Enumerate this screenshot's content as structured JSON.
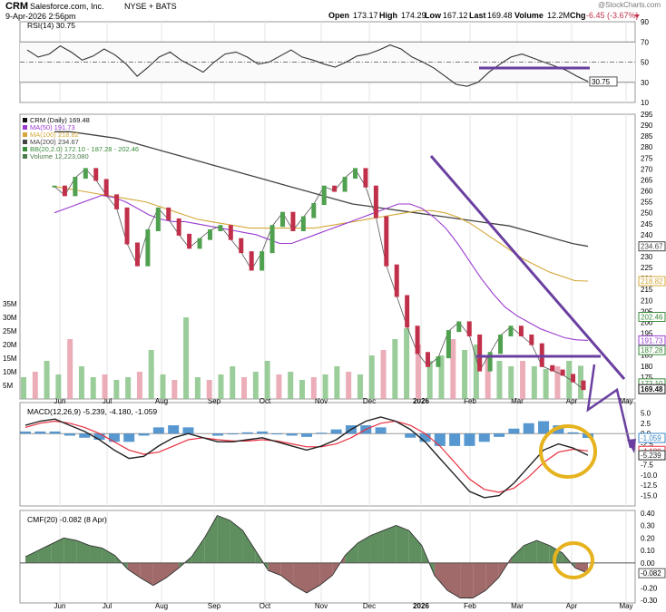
{
  "header": {
    "symbol": "CRM",
    "company": "Salesforce.com, Inc.",
    "exchange": "NYSE + BATS",
    "date": "9-Apr-2026 2:56pm",
    "open_label": "Open",
    "open": "173.17",
    "high_label": "High",
    "high": "174.29",
    "low_label": "Low",
    "low": "167.12",
    "last_label": "Last",
    "last": "169.48",
    "volume_label": "Volume",
    "volume": "12.2M",
    "chg_label": "Chg",
    "chg": "-6.45 (-3.67%)",
    "chg_icon": "down-triangle-icon",
    "watermark": "@StockCharts.com"
  },
  "colors": {
    "up": "#4fa04f",
    "down": "#c0304a",
    "ma50": "#9b3ccf",
    "ma100": "#d4a838",
    "ma200": "#444444",
    "bb": "#3a8a3a",
    "volume_up": "#88c488",
    "volume_down": "#e8a0ad",
    "macd_line": "#222222",
    "signal_line": "#e83040",
    "histogram": "#3a86c8",
    "cmf_pos": "#5f8f5f",
    "cmf_neg": "#a06a6a",
    "annotation": "#6a3fa0",
    "circle": "#e6b31e"
  },
  "chart_data": [
    {
      "type": "line",
      "title": "RSI(14) 30.75",
      "ylim": [
        10,
        90
      ],
      "yticks": [
        10,
        30,
        50,
        70,
        90
      ],
      "current_label": "30.75",
      "series": [
        {
          "name": "RSI(14)",
          "values": [
            62,
            55,
            58,
            66,
            60,
            52,
            56,
            63,
            57,
            48,
            36,
            45,
            55,
            60,
            52,
            46,
            40,
            50,
            58,
            60,
            55,
            48,
            50,
            56,
            62,
            55,
            52,
            48,
            45,
            50,
            56,
            58,
            62,
            67,
            63,
            55,
            50,
            44,
            36,
            28,
            26,
            30,
            40,
            48,
            55,
            58,
            54,
            50,
            46,
            42,
            36,
            30.75
          ]
        }
      ]
    },
    {
      "type": "line",
      "title": "CRM (Daily) 169.48",
      "ylim": [
        165,
        295
      ],
      "yticks": [
        175,
        180,
        185,
        190,
        195,
        200,
        205,
        210,
        215,
        220,
        225,
        230,
        235,
        240,
        245,
        250,
        255,
        260,
        265,
        270,
        275,
        280,
        285,
        290,
        295
      ],
      "xticks": [
        "Jun",
        "Jul",
        "Aug",
        "Sep",
        "Oct",
        "Nov",
        "Dec",
        "2026",
        "Feb",
        "Mar",
        "Apr",
        "May"
      ],
      "series": [
        {
          "name": "CRM (Daily) 169.48",
          "values": [
            262,
            258,
            266,
            270,
            265,
            258,
            252,
            236,
            226,
            242,
            252,
            247,
            240,
            234,
            238,
            242,
            244,
            238,
            232,
            224,
            232,
            244,
            250,
            242,
            248,
            254,
            262,
            260,
            266,
            270,
            262,
            248,
            226,
            212,
            198,
            186,
            180,
            184,
            196,
            200,
            194,
            178,
            186,
            194,
            198,
            194,
            190,
            180,
            178,
            176,
            173,
            169.48
          ]
        },
        {
          "name": "MA(50) 191.73",
          "values": [
            250,
            252,
            254,
            256,
            258,
            257,
            255,
            252,
            249,
            247,
            246,
            246,
            245,
            244,
            243,
            242,
            241,
            240,
            238,
            236,
            236,
            238,
            240,
            242,
            244,
            246,
            248,
            250,
            252,
            254,
            254,
            252,
            248,
            243,
            236,
            228,
            220,
            213,
            207,
            203,
            200,
            197,
            195,
            193,
            192,
            191.73
          ]
        },
        {
          "name": "MA(100) 218.82",
          "values": [
            262,
            261,
            260,
            259,
            258,
            257,
            256,
            255,
            253,
            251,
            249,
            247,
            246,
            245,
            244,
            243,
            243,
            243,
            243,
            243,
            243,
            244,
            245,
            246,
            247,
            248,
            249,
            250,
            251,
            251,
            250,
            248,
            245,
            241,
            237,
            233,
            229,
            226,
            223,
            221,
            219,
            218.82
          ]
        },
        {
          "name": "MA(200) 234.67",
          "values": [
            287,
            287,
            286,
            285,
            284,
            282,
            280,
            278,
            276,
            274,
            272,
            270,
            268,
            266,
            264,
            262,
            260,
            258,
            256,
            254,
            253,
            252,
            251,
            250,
            249,
            248,
            247,
            246,
            245,
            244,
            242,
            240,
            238,
            236,
            234.67
          ]
        },
        {
          "name": "BB(20,2.0) 172.10 - 187.28 - 202.46",
          "values": [
            202.46,
            187.28,
            172.1
          ]
        }
      ],
      "current_labels": [
        "234.67",
        "218.82",
        "202.46",
        "191.73",
        "187.28",
        "172.10",
        "169.48"
      ]
    },
    {
      "type": "bar",
      "title": "Volume 12,223,080",
      "ylim": [
        0,
        35
      ],
      "yticks": [
        "5M",
        "10M",
        "15M",
        "20M",
        "25M",
        "30M",
        "35M"
      ],
      "series": [
        {
          "name": "Volume 12,223,080",
          "values": [
            8,
            10,
            14,
            9,
            22,
            12,
            8,
            9,
            7,
            8,
            10,
            18,
            9,
            7,
            30,
            8,
            7,
            9,
            12,
            8,
            10,
            14,
            9,
            10,
            7,
            8,
            9,
            12,
            10,
            9,
            16,
            18,
            22,
            26,
            20,
            14,
            16,
            22,
            18,
            20,
            16,
            14,
            12,
            14,
            12,
            11,
            12,
            14,
            12.2
          ]
        }
      ]
    },
    {
      "type": "line",
      "title": "MACD(12,26,9) -5.239, -4.180, -1.059",
      "ylim": [
        -17.5,
        7.5
      ],
      "yticks": [
        5.0,
        2.5,
        0.0,
        -2.5,
        -5.0,
        -7.5,
        -10.0,
        -12.5,
        -15.0
      ],
      "current_labels": [
        "-1.059",
        "-4.180",
        "-5.239"
      ],
      "series": [
        {
          "name": "MACD",
          "values": [
            2,
            3,
            3.5,
            2,
            0.5,
            -1.5,
            -4,
            -6,
            -5.5,
            -3,
            -1,
            0,
            -1,
            -2,
            -2,
            -1.5,
            -1,
            -2,
            -3,
            -4,
            -3,
            -1.5,
            1,
            3,
            4,
            3,
            1,
            -2,
            -6,
            -10,
            -14,
            -15.5,
            -15,
            -12,
            -8,
            -4,
            -2.5,
            -3.5,
            -5.239
          ]
        },
        {
          "name": "Signal",
          "values": [
            1.5,
            2.5,
            3,
            2.5,
            1.5,
            0,
            -2,
            -4,
            -5,
            -4.5,
            -3,
            -1.5,
            -1,
            -1.5,
            -1.8,
            -1.8,
            -1.5,
            -1.8,
            -2.5,
            -3.2,
            -3.2,
            -2.5,
            -1,
            1,
            2.5,
            3,
            2,
            0,
            -3,
            -7,
            -11,
            -13.5,
            -14.2,
            -13.2,
            -10.5,
            -7,
            -4.5,
            -3.8,
            -4.18
          ]
        },
        {
          "name": "Histogram",
          "values": [
            0.5,
            0.5,
            0.5,
            -0.5,
            -1,
            -1.5,
            -2,
            -2,
            -0.5,
            1.5,
            2,
            1.5,
            0,
            -0.5,
            -0.2,
            0.3,
            0.5,
            -0.2,
            -0.5,
            -0.8,
            0.2,
            1,
            2,
            2,
            1.5,
            0,
            -1,
            -2,
            -3,
            -3,
            -3,
            -2,
            -0.8,
            1.2,
            2.5,
            3,
            2,
            0.3,
            -1.059
          ]
        }
      ]
    },
    {
      "type": "area",
      "title": "CMF(20) -0.082 (8 Apr)",
      "ylim": [
        -0.32,
        0.42
      ],
      "yticks": [
        0.4,
        0.3,
        0.2,
        0.1,
        0.0,
        -0.1,
        -0.2,
        -0.3
      ],
      "current_label": "-0.082",
      "series": [
        {
          "name": "CMF(20)",
          "values": [
            0.05,
            0.1,
            0.15,
            0.2,
            0.18,
            0.14,
            0.12,
            0.06,
            -0.05,
            -0.12,
            -0.18,
            -0.12,
            -0.04,
            0.05,
            0.2,
            0.38,
            0.34,
            0.26,
            0.1,
            -0.06,
            -0.1,
            -0.18,
            -0.24,
            -0.18,
            -0.1,
            0.06,
            0.16,
            0.22,
            0.26,
            0.3,
            0.26,
            0.14,
            -0.1,
            -0.22,
            -0.28,
            -0.28,
            -0.22,
            -0.12,
            0.04,
            0.14,
            0.18,
            0.14,
            0.08,
            -0.04,
            -0.082
          ]
        }
      ]
    }
  ]
}
